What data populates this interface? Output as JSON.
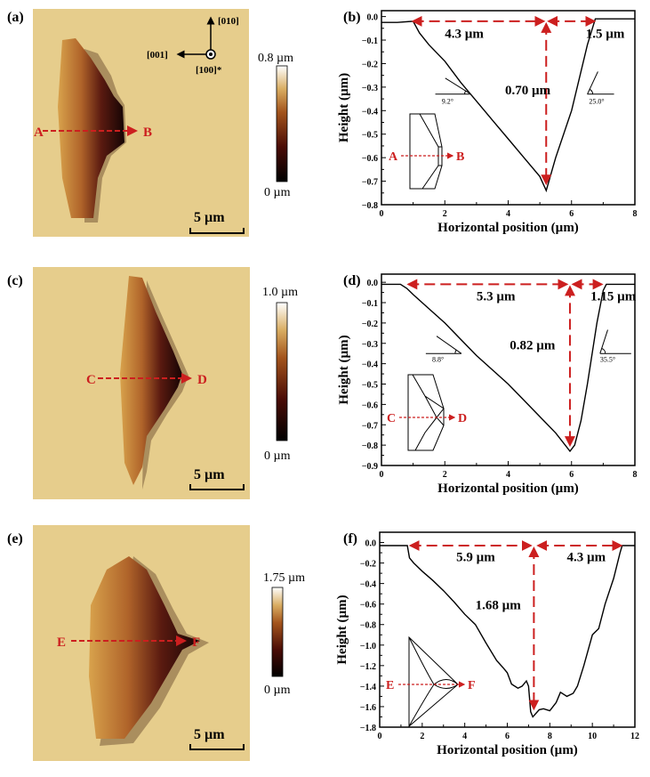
{
  "afm": [
    {
      "label": "(a)",
      "cb_max": "0.8 µm",
      "cb_min": "0 µm",
      "scale": "5 µm",
      "start": "A",
      "end": "B",
      "axes": {
        "up": "[010]",
        "left": "[001]",
        "out": "[100]*"
      }
    },
    {
      "label": "(c)",
      "cb_max": "1.0 µm",
      "cb_min": "0 µm",
      "scale": "5 µm",
      "start": "C",
      "end": "D"
    },
    {
      "label": "(e)",
      "cb_max": "1.75 µm",
      "cb_min": "0 µm",
      "scale": "5 µm",
      "start": "E",
      "end": "F"
    }
  ],
  "colors": {
    "accent": "#cc1f1f",
    "line": "#000000",
    "substrate": "#e6cd8c"
  },
  "chart_data": [
    {
      "panel": "(b)",
      "type": "line",
      "xlabel": "Horizontal position (µm)",
      "ylabel": "Height (µm)",
      "xlim": [
        0,
        8
      ],
      "ylim": [
        -0.8,
        0.025
      ],
      "xticks": [
        0,
        2,
        4,
        6,
        8
      ],
      "yticks": [
        -0.8,
        -0.7,
        -0.6,
        -0.5,
        -0.4,
        -0.3,
        -0.2,
        -0.1,
        0.0
      ],
      "ytick_labels": [
        "−0.8",
        "−0.7",
        "−0.6",
        "−0.5",
        "−0.4",
        "−0.3",
        "−0.2",
        "−0.1",
        "0.0"
      ],
      "x": [
        0,
        0.5,
        1.0,
        1.2,
        1.5,
        2,
        2.5,
        3,
        3.5,
        4,
        4.5,
        5,
        5.2,
        5.5,
        6,
        6.5,
        6.75,
        7,
        8
      ],
      "y": [
        -0.025,
        -0.025,
        -0.02,
        -0.07,
        -0.12,
        -0.19,
        -0.28,
        -0.36,
        -0.44,
        -0.52,
        -0.6,
        -0.68,
        -0.74,
        -0.6,
        -0.4,
        -0.12,
        -0.01,
        -0.01,
        -0.01
      ],
      "annotations": {
        "left_width": "4.3 µm",
        "right_width": "1.5 µm",
        "depth": "0.70 µm",
        "left_angle": "9.2°",
        "right_angle": "25.0°"
      },
      "inset": {
        "start": "A",
        "end": "B"
      }
    },
    {
      "panel": "(d)",
      "type": "line",
      "xlabel": "Horizontal position (µm)",
      "ylabel": "Height (µm)",
      "xlim": [
        0,
        8
      ],
      "ylim": [
        -0.9,
        0.04
      ],
      "xticks": [
        0,
        2,
        4,
        6,
        8
      ],
      "yticks": [
        -0.9,
        -0.8,
        -0.7,
        -0.6,
        -0.5,
        -0.4,
        -0.3,
        -0.2,
        -0.1,
        0.0
      ],
      "ytick_labels": [
        "−0.9",
        "−0.8",
        "−0.7",
        "−0.6",
        "−0.5",
        "−0.4",
        "−0.3",
        "−0.2",
        "−0.1",
        "0.0"
      ],
      "x": [
        0,
        0.4,
        0.6,
        0.8,
        1,
        1.5,
        2,
        2.5,
        3,
        3.5,
        4,
        4.5,
        5,
        5.5,
        5.8,
        5.95,
        6.1,
        6.3,
        6.5,
        6.8,
        7.0,
        7.1,
        8
      ],
      "y": [
        -0.01,
        -0.01,
        -0.01,
        -0.03,
        -0.06,
        -0.13,
        -0.2,
        -0.28,
        -0.36,
        -0.43,
        -0.5,
        -0.58,
        -0.66,
        -0.74,
        -0.8,
        -0.83,
        -0.8,
        -0.68,
        -0.5,
        -0.2,
        -0.04,
        -0.01,
        -0.01
      ],
      "annotations": {
        "left_width": "5.3 µm",
        "right_width": "1.15 µm",
        "depth": "0.82 µm",
        "left_angle": "8.8°",
        "right_angle": "35.5°"
      },
      "inset": {
        "start": "C",
        "end": "D"
      }
    },
    {
      "panel": "(f)",
      "type": "line",
      "xlabel": "Horizontal position (µm)",
      "ylabel": "Height (µm)",
      "xlim": [
        0,
        12
      ],
      "ylim": [
        -1.8,
        0.1
      ],
      "xticks": [
        0,
        2,
        4,
        6,
        8,
        10,
        12
      ],
      "yticks": [
        -1.8,
        -1.6,
        -1.4,
        -1.2,
        -1.0,
        -0.8,
        -0.6,
        -0.4,
        -0.2,
        0.0
      ],
      "ytick_labels": [
        "−1.8",
        "−1.6",
        "−1.4",
        "−1.2",
        "−1.0",
        "−0.8",
        "−0.6",
        "−0.4",
        "−0.2",
        "0.0"
      ],
      "x": [
        0,
        1.3,
        1.4,
        1.6,
        2,
        2.5,
        3,
        3.5,
        4,
        4.5,
        5,
        5.5,
        5.8,
        6,
        6.2,
        6.5,
        6.7,
        6.9,
        7.0,
        7.1,
        7.2,
        7.5,
        7.7,
        8,
        8.3,
        8.5,
        8.8,
        9.1,
        9.3,
        9.6,
        10,
        10.3,
        10.6,
        11,
        11.3,
        11.4,
        12
      ],
      "y": [
        -0.03,
        -0.03,
        -0.15,
        -0.2,
        -0.28,
        -0.37,
        -0.47,
        -0.58,
        -0.7,
        -0.8,
        -0.98,
        -1.15,
        -1.22,
        -1.27,
        -1.38,
        -1.42,
        -1.4,
        -1.35,
        -1.4,
        -1.65,
        -1.7,
        -1.63,
        -1.62,
        -1.64,
        -1.56,
        -1.46,
        -1.5,
        -1.47,
        -1.4,
        -1.2,
        -0.9,
        -0.84,
        -0.6,
        -0.35,
        -0.1,
        -0.03,
        -0.03
      ],
      "annotations": {
        "left_width": "5.9 µm",
        "right_width": "4.3 µm",
        "depth": "1.68 µm"
      },
      "inset": {
        "start": "E",
        "end": "F"
      }
    }
  ]
}
